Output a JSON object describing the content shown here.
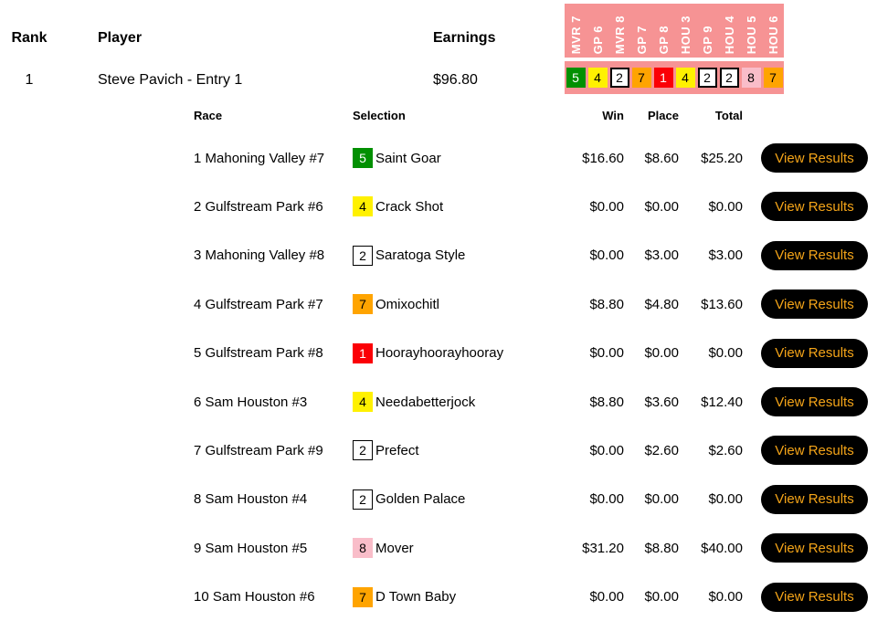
{
  "standings": {
    "columns": {
      "rank": "Rank",
      "player": "Player",
      "earnings": "Earnings"
    },
    "entry": {
      "rank": "1",
      "player": "Steve Pavich - Entry 1",
      "earnings": "$96.80"
    }
  },
  "picks_strip": {
    "background": "#F69394",
    "label_color": "#FFFFFF",
    "columns": [
      {
        "label": "MVR 7",
        "number": "5",
        "bg": "#029002",
        "fg": "#FFFFFF",
        "border": false
      },
      {
        "label": "GP 6",
        "number": "4",
        "bg": "#FFF100",
        "fg": "#000000",
        "border": false
      },
      {
        "label": "MVR 8",
        "number": "2",
        "bg": "#FFFFFF",
        "fg": "#000000",
        "border": true
      },
      {
        "label": "GP 7",
        "number": "7",
        "bg": "#FFA400",
        "fg": "#000000",
        "border": false
      },
      {
        "label": "GP 8",
        "number": "1",
        "bg": "#FB0006",
        "fg": "#FFFFFF",
        "border": false
      },
      {
        "label": "HOU 3",
        "number": "4",
        "bg": "#FFF100",
        "fg": "#000000",
        "border": false
      },
      {
        "label": "GP 9",
        "number": "2",
        "bg": "#FFFFFF",
        "fg": "#000000",
        "border": true
      },
      {
        "label": "HOU 4",
        "number": "2",
        "bg": "#FFFFFF",
        "fg": "#000000",
        "border": true
      },
      {
        "label": "HOU 5",
        "number": "8",
        "bg": "#F9BDC9",
        "fg": "#000000",
        "border": false
      },
      {
        "label": "HOU 6",
        "number": "7",
        "bg": "#FFA400",
        "fg": "#000000",
        "border": false
      }
    ]
  },
  "results_table": {
    "columns": {
      "race": "Race",
      "selection": "Selection",
      "win": "Win",
      "place": "Place",
      "total": "Total"
    },
    "view_results_label": "View Results",
    "button_colors": {
      "bg": "#000000",
      "fg": "#F4A418"
    },
    "rows": [
      {
        "race": "1 Mahoning Valley #7",
        "number": "5",
        "badge_bg": "#029002",
        "badge_fg": "#FFFFFF",
        "badge_border": false,
        "horse": "Saint Goar",
        "win": "$16.60",
        "place": "$8.60",
        "total": "$25.20"
      },
      {
        "race": "2 Gulfstream Park #6",
        "number": "4",
        "badge_bg": "#FFF100",
        "badge_fg": "#000000",
        "badge_border": false,
        "horse": "Crack Shot",
        "win": "$0.00",
        "place": "$0.00",
        "total": "$0.00"
      },
      {
        "race": "3 Mahoning Valley #8",
        "number": "2",
        "badge_bg": "#FFFFFF",
        "badge_fg": "#000000",
        "badge_border": true,
        "horse": "Saratoga Style",
        "win": "$0.00",
        "place": "$3.00",
        "total": "$3.00"
      },
      {
        "race": "4 Gulfstream Park #7",
        "number": "7",
        "badge_bg": "#FFA400",
        "badge_fg": "#000000",
        "badge_border": false,
        "horse": "Omixochitl",
        "win": "$8.80",
        "place": "$4.80",
        "total": "$13.60"
      },
      {
        "race": "5 Gulfstream Park #8",
        "number": "1",
        "badge_bg": "#FB0006",
        "badge_fg": "#FFFFFF",
        "badge_border": false,
        "horse": "Hoorayhoorayhooray",
        "win": "$0.00",
        "place": "$0.00",
        "total": "$0.00"
      },
      {
        "race": "6 Sam Houston #3",
        "number": "4",
        "badge_bg": "#FFF100",
        "badge_fg": "#000000",
        "badge_border": false,
        "horse": "Needabetterjock",
        "win": "$8.80",
        "place": "$3.60",
        "total": "$12.40"
      },
      {
        "race": "7 Gulfstream Park #9",
        "number": "2",
        "badge_bg": "#FFFFFF",
        "badge_fg": "#000000",
        "badge_border": true,
        "horse": "Prefect",
        "win": "$0.00",
        "place": "$2.60",
        "total": "$2.60"
      },
      {
        "race": "8 Sam Houston #4",
        "number": "2",
        "badge_bg": "#FFFFFF",
        "badge_fg": "#000000",
        "badge_border": true,
        "horse": "Golden Palace",
        "win": "$0.00",
        "place": "$0.00",
        "total": "$0.00"
      },
      {
        "race": "9 Sam Houston #5",
        "number": "8",
        "badge_bg": "#F9BDC9",
        "badge_fg": "#000000",
        "badge_border": false,
        "horse": "Mover",
        "win": "$31.20",
        "place": "$8.80",
        "total": "$40.00"
      },
      {
        "race": "10 Sam Houston #6",
        "number": "7",
        "badge_bg": "#FFA400",
        "badge_fg": "#000000",
        "badge_border": false,
        "horse": "D Town Baby",
        "win": "$0.00",
        "place": "$0.00",
        "total": "$0.00"
      }
    ]
  }
}
